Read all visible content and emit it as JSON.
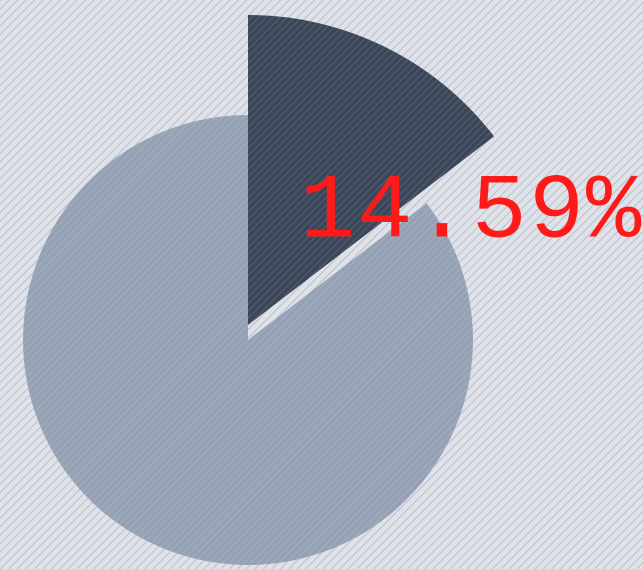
{
  "chart_data": {
    "type": "pie",
    "values": [
      14.59,
      85.41
    ],
    "value_labels": [
      "14.59%",
      null
    ],
    "colors": [
      "#3b4659",
      "#95a2b5"
    ]
  }
}
